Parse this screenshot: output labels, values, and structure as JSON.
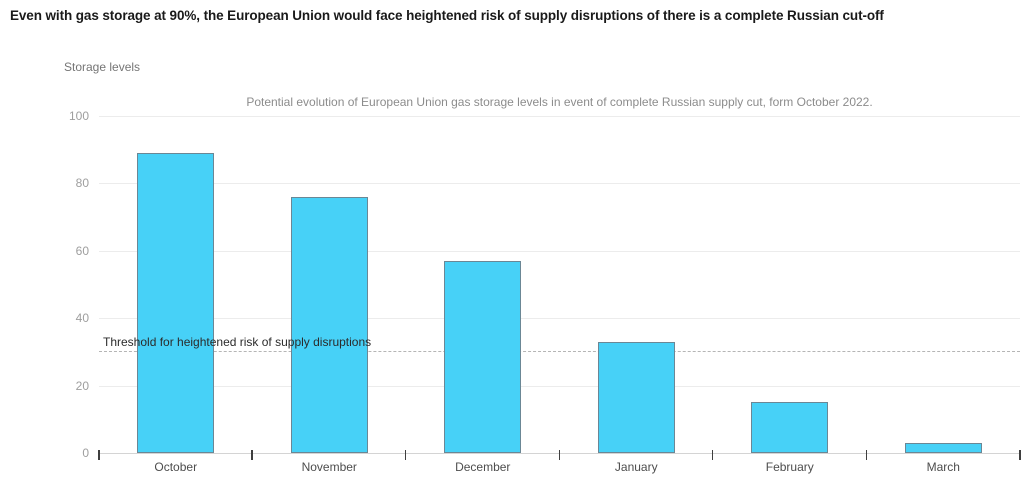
{
  "page": {
    "title": "Even with gas storage at 90%, the European Union would face heightened risk of supply disruptions of there is a complete Russian cut-off"
  },
  "chart_data": {
    "type": "bar",
    "title": "Potential evolution of European Union gas storage levels in event of complete Russian supply cut, form October 2022.",
    "ylabel": "Storage levels",
    "xlabel": "",
    "categories": [
      "October",
      "November",
      "December",
      "January",
      "February",
      "March"
    ],
    "values": [
      89,
      76,
      57,
      33,
      15,
      3
    ],
    "ylim": [
      0,
      100
    ],
    "yticks": [
      0,
      20,
      40,
      60,
      80,
      100
    ],
    "grid": "horizontal",
    "legend": "none",
    "threshold": {
      "value": 30,
      "label": "Threshold for heightened risk of supply disruptions"
    },
    "colors": {
      "bar_fill": "#47d1f7",
      "bar_border": "#6b8795",
      "threshold_line": "#b5b5b5",
      "gridline": "#ececec",
      "axis_line": "#d4d4d4"
    }
  }
}
